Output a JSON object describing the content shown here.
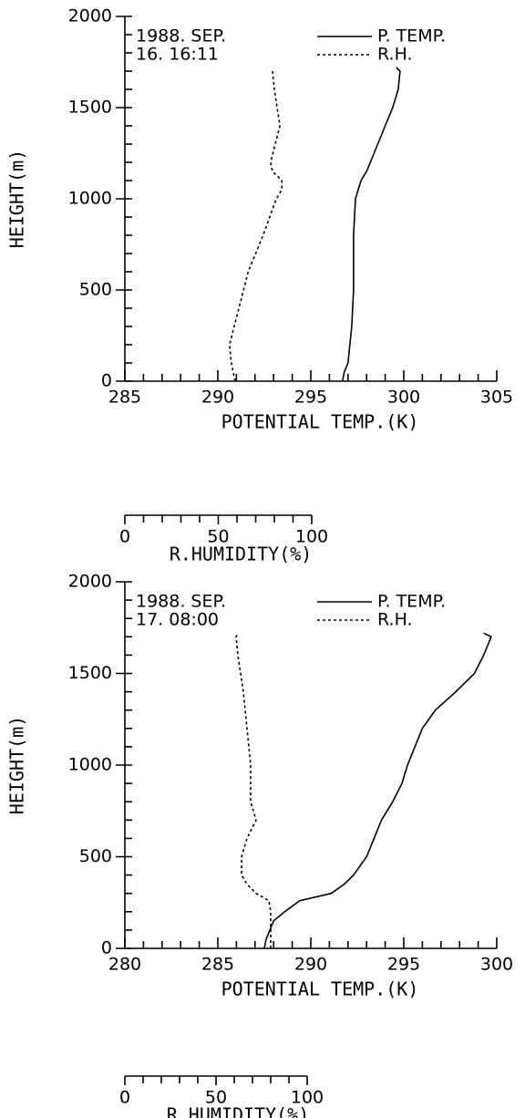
{
  "chart_data": [
    {
      "type": "line",
      "annotations": [
        "1988. SEP.",
        "16. 16:11"
      ],
      "ylabel": "HEIGHT(m)",
      "xlabel": "POTENTIAL TEMP.(K)",
      "x2label": "R.HUMIDITY(%)",
      "ylim": [
        0,
        2000
      ],
      "yticks": [
        0,
        500,
        1000,
        1500,
        2000
      ],
      "minor_yticks": [
        100,
        200,
        300,
        400,
        600,
        700,
        800,
        900,
        1100,
        1200,
        1300,
        1400,
        1600,
        1700,
        1800,
        1900
      ],
      "xlim": [
        285,
        305
      ],
      "xticks": [
        285,
        290,
        295,
        300,
        305
      ],
      "minor_xticks": [
        286,
        287,
        288,
        289,
        291,
        292,
        293,
        294,
        296,
        297,
        298,
        299,
        301,
        302,
        303,
        304
      ],
      "x2lim": [
        0,
        100
      ],
      "x2ticks": [
        0,
        50,
        100
      ],
      "minor_x2ticks": [
        10,
        20,
        30,
        40,
        60,
        70,
        80,
        90
      ],
      "series": [
        {
          "name": "P. TEMP.",
          "color": "#000000",
          "dash": "solid",
          "y": [
            0,
            50,
            100,
            300,
            500,
            800,
            1000,
            1100,
            1150,
            1250,
            1400,
            1500,
            1600,
            1700,
            1720
          ],
          "x": [
            296.7,
            296.8,
            297.0,
            297.2,
            297.3,
            297.3,
            297.4,
            297.7,
            298.0,
            298.4,
            299.0,
            299.4,
            299.7,
            299.8,
            299.6
          ]
        },
        {
          "name": "R.H.",
          "color": "#000000",
          "dash": "dotted",
          "axis": "x2",
          "y": [
            0,
            100,
            200,
            400,
            600,
            800,
            1000,
            1050,
            1100,
            1150,
            1200,
            1400,
            1600,
            1700
          ],
          "x": [
            59,
            57,
            56,
            61,
            66,
            74,
            81,
            84,
            84,
            79,
            78,
            83,
            80,
            79
          ]
        }
      ]
    },
    {
      "type": "line",
      "annotations": [
        "1988. SEP.",
        "17. 08:00"
      ],
      "ylabel": "HEIGHT(m)",
      "xlabel": "POTENTIAL TEMP.(K)",
      "x2label": "R.HUMIDITY(%)",
      "ylim": [
        0,
        2000
      ],
      "yticks": [
        0,
        500,
        1000,
        1500,
        2000
      ],
      "minor_yticks": [
        100,
        200,
        300,
        400,
        600,
        700,
        800,
        900,
        1100,
        1200,
        1300,
        1400,
        1600,
        1700,
        1800,
        1900
      ],
      "xlim": [
        280,
        300
      ],
      "xticks": [
        280,
        285,
        290,
        295,
        300
      ],
      "minor_xticks": [
        281,
        282,
        283,
        284,
        286,
        287,
        288,
        289,
        291,
        292,
        293,
        294,
        296,
        297,
        298,
        299
      ],
      "x2lim": [
        0,
        100
      ],
      "x2ticks": [
        0,
        50,
        100
      ],
      "minor_x2ticks": [
        10,
        20,
        30,
        40,
        60,
        70,
        80,
        90
      ],
      "series": [
        {
          "name": "P. TEMP.",
          "color": "#000000",
          "dash": "solid",
          "y": [
            0,
            50,
            100,
            150,
            200,
            260,
            300,
            350,
            400,
            500,
            600,
            700,
            800,
            900,
            1000,
            1100,
            1200,
            1300,
            1400,
            1500,
            1600,
            1700,
            1720
          ],
          "x": [
            287.5,
            287.6,
            287.8,
            288.0,
            288.6,
            289.4,
            291.1,
            291.8,
            292.3,
            293.0,
            293.4,
            293.8,
            294.4,
            294.9,
            295.2,
            295.6,
            296.0,
            296.7,
            297.8,
            298.8,
            299.3,
            299.7,
            299.3
          ]
        },
        {
          "name": "R.H.",
          "color": "#000000",
          "dash": "dotted",
          "axis": "x2",
          "y": [
            0,
            200,
            260,
            300,
            350,
            400,
            500,
            600,
            700,
            800,
            900,
            1000,
            1200,
            1400,
            1600,
            1700,
            1720
          ],
          "x": [
            80,
            80,
            79,
            72,
            67,
            64,
            64,
            67,
            72,
            69,
            69,
            69,
            67,
            65,
            62,
            61,
            62
          ]
        }
      ]
    }
  ]
}
